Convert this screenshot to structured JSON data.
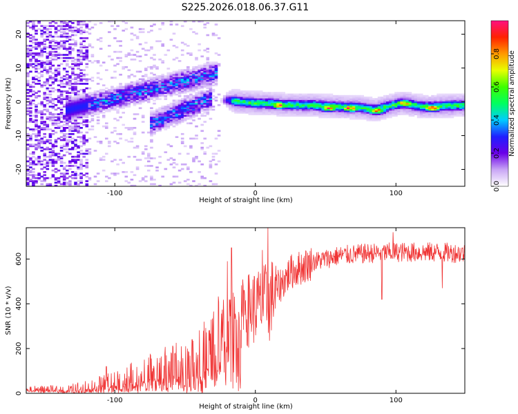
{
  "figure": {
    "title": "S225.2026.018.06.37.G11"
  },
  "chart_data": [
    {
      "type": "heatmap",
      "name": "spectrogram",
      "xlabel": "Height of straight line (km)",
      "ylabel": "Frequency (Hz)",
      "xlim": [
        -163,
        149
      ],
      "ylim": [
        -25,
        24
      ],
      "x_ticks": [
        -100,
        0,
        100
      ],
      "x_tick_labels": [
        "-100",
        "0",
        "100"
      ],
      "y_ticks": [
        20,
        10,
        0,
        -10,
        -20
      ],
      "y_tick_labels": [
        "20",
        "10",
        "0",
        "-10",
        "-20"
      ],
      "colorbar": {
        "label": "Normalized spectral amplitude",
        "range": [
          0,
          1
        ],
        "ticks": [
          0.0,
          0.2,
          0.4,
          0.6,
          0.8
        ],
        "tick_labels": [
          "0.0",
          "0.2",
          "0.4",
          "0.6",
          "0.8"
        ],
        "stops": [
          {
            "v": 0.0,
            "color": "#ffffff"
          },
          {
            "v": 0.1,
            "color": "#c9a6f5"
          },
          {
            "v": 0.2,
            "color": "#6a00e8"
          },
          {
            "v": 0.3,
            "color": "#1f1fff"
          },
          {
            "v": 0.4,
            "color": "#00ccff"
          },
          {
            "v": 0.5,
            "color": "#00ff60"
          },
          {
            "v": 0.6,
            "color": "#3dff00"
          },
          {
            "v": 0.7,
            "color": "#e8ff00"
          },
          {
            "v": 0.8,
            "color": "#ff9900"
          },
          {
            "v": 0.9,
            "color": "#ff2200"
          },
          {
            "v": 1.0,
            "color": "#ff1080"
          }
        ]
      },
      "ridge": [
        {
          "x": -20,
          "f": 0.6
        },
        {
          "x": -10,
          "f": 0.0
        },
        {
          "x": 0,
          "f": -0.3
        },
        {
          "x": 10,
          "f": -0.4
        },
        {
          "x": 20,
          "f": -0.8
        },
        {
          "x": 40,
          "f": -0.9
        },
        {
          "x": 60,
          "f": -1.4
        },
        {
          "x": 75,
          "f": -1.6
        },
        {
          "x": 85,
          "f": -2.3
        },
        {
          "x": 95,
          "f": -1.2
        },
        {
          "x": 105,
          "f": -0.3
        },
        {
          "x": 120,
          "f": -1.4
        },
        {
          "x": 149,
          "f": -0.9
        }
      ],
      "hot_spots": [
        {
          "x": 17,
          "f": -0.9,
          "level": 0.92
        },
        {
          "x": 52,
          "f": -1.7,
          "level": 0.9
        },
        {
          "x": 68,
          "f": -1.8,
          "level": 0.95
        },
        {
          "x": 86,
          "f": -2.5,
          "level": 0.9
        },
        {
          "x": 106,
          "f": -0.4,
          "level": 0.88
        },
        {
          "x": 126,
          "f": -1.7,
          "level": 0.9
        }
      ],
      "emission_branches": [
        {
          "x0": -135,
          "f0": -2.5,
          "x1": -28,
          "f1": 8.5,
          "level": 0.3
        },
        {
          "x0": -75,
          "f0": -6.5,
          "x1": -32,
          "f1": 1.0,
          "level": 0.3
        }
      ]
    },
    {
      "type": "line",
      "name": "snr",
      "xlabel": "Height of straight line (km)",
      "ylabel": "SNR (10 * v/v)",
      "xlim": [
        -163,
        149
      ],
      "ylim": [
        0,
        740
      ],
      "x_ticks": [
        -100,
        0,
        100
      ],
      "x_tick_labels": [
        "-100",
        "0",
        "100"
      ],
      "y_ticks": [
        0,
        200,
        400,
        600
      ],
      "y_tick_labels": [
        "0",
        "200",
        "400",
        "600"
      ],
      "color": "#f03434",
      "trend": [
        {
          "x": -163,
          "y": 20
        },
        {
          "x": -130,
          "y": 25
        },
        {
          "x": -110,
          "y": 45
        },
        {
          "x": -90,
          "y": 75
        },
        {
          "x": -70,
          "y": 110
        },
        {
          "x": -50,
          "y": 140
        },
        {
          "x": -35,
          "y": 190
        },
        {
          "x": -25,
          "y": 260
        },
        {
          "x": -15,
          "y": 330
        },
        {
          "x": -5,
          "y": 390
        },
        {
          "x": 5,
          "y": 420
        },
        {
          "x": 15,
          "y": 470
        },
        {
          "x": 25,
          "y": 550
        },
        {
          "x": 40,
          "y": 590
        },
        {
          "x": 60,
          "y": 620
        },
        {
          "x": 80,
          "y": 630
        },
        {
          "x": 100,
          "y": 635
        },
        {
          "x": 130,
          "y": 635
        },
        {
          "x": 149,
          "y": 630
        }
      ],
      "spikes": [
        {
          "x": -106,
          "y": 120
        },
        {
          "x": -76,
          "y": 160
        },
        {
          "x": -60,
          "y": 180
        },
        {
          "x": -45,
          "y": 240
        },
        {
          "x": -30,
          "y": 300
        },
        {
          "x": -20,
          "y": 590
        },
        {
          "x": -17,
          "y": 650
        },
        {
          "x": -12,
          "y": 450
        },
        {
          "x": -8,
          "y": 460
        },
        {
          "x": 5,
          "y": 640
        },
        {
          "x": 9,
          "y": 740
        },
        {
          "x": 90,
          "y": 700
        },
        {
          "x": 98,
          "y": 720
        }
      ],
      "dips": [
        {
          "x": -12,
          "y": 10
        },
        {
          "x": 10,
          "y": 235
        },
        {
          "x": 90,
          "y": 420
        },
        {
          "x": 133,
          "y": 470
        }
      ]
    }
  ]
}
